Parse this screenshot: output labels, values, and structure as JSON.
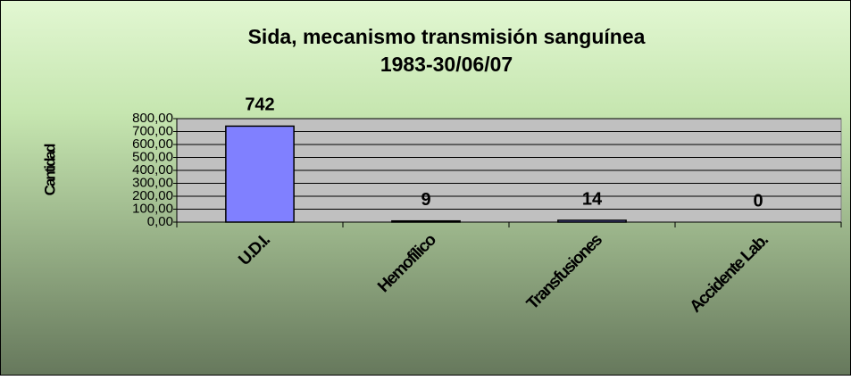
{
  "chart_data": {
    "type": "bar",
    "title": "Sida, mecanismo transmisión sanguínea",
    "subtitle": "1983-30/06/07",
    "y_label": "Cantidad",
    "categories": [
      "U.D.I.",
      "Hemofílico",
      "Transfusiones",
      "Accidente Lab."
    ],
    "values": [
      742,
      9,
      14,
      0
    ],
    "color": "#8080ff",
    "ylim": [
      0,
      800
    ],
    "yticks": [
      {
        "value": 0,
        "label": "0,00"
      },
      {
        "value": 100,
        "label": "100,00"
      },
      {
        "value": 200,
        "label": "200,00"
      },
      {
        "value": 300,
        "label": "300,00"
      },
      {
        "value": 400,
        "label": "400,00"
      },
      {
        "value": 500,
        "label": "500,00"
      },
      {
        "value": 600,
        "label": "600,00"
      },
      {
        "value": 700,
        "label": "700,00"
      },
      {
        "value": 800,
        "label": "800,00"
      }
    ],
    "grid": true
  }
}
